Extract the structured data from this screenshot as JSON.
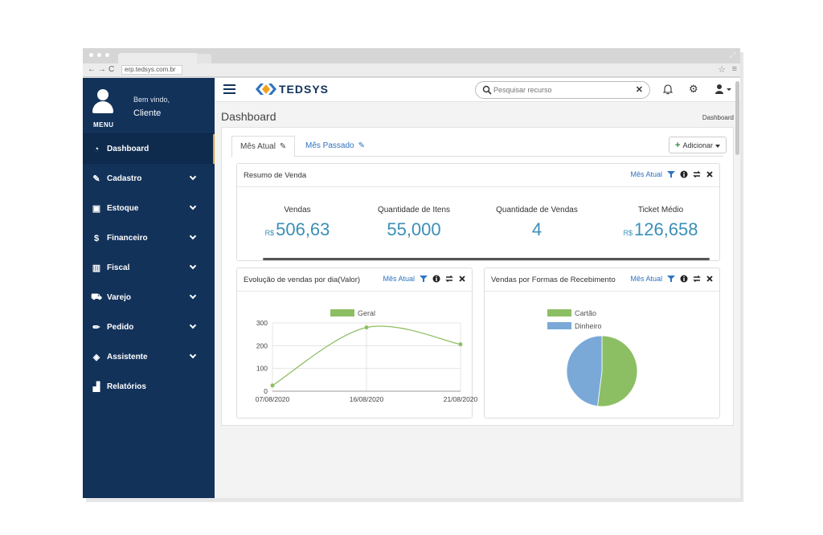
{
  "browser": {
    "url": "erp.tedsys.com.br"
  },
  "sidebar": {
    "welcome": "Bem vindo,",
    "client": "Cliente",
    "menu_label": "MENU",
    "items": [
      {
        "label": "Dashboard",
        "icon": "dashboard-icon",
        "active": true
      },
      {
        "label": "Cadastro",
        "icon": "edit-icon"
      },
      {
        "label": "Estoque",
        "icon": "box-icon"
      },
      {
        "label": "Financeiro",
        "icon": "dollar-icon"
      },
      {
        "label": "Fiscal",
        "icon": "barcode-icon"
      },
      {
        "label": "Varejo",
        "icon": "cart-icon"
      },
      {
        "label": "Pedido",
        "icon": "pencil-icon"
      },
      {
        "label": "Assistente",
        "icon": "ticket-icon"
      },
      {
        "label": "Relatórios",
        "icon": "bar-chart-icon"
      }
    ]
  },
  "topbar": {
    "logo": "TEDSYS",
    "search_placeholder": "Pesquisar recurso"
  },
  "page": {
    "title": "Dashboard",
    "breadcrumb": "Dashboard",
    "tabs": [
      {
        "label": "Mês Atual",
        "active": true
      },
      {
        "label": "Mês Passado",
        "active": false
      }
    ],
    "add_label": "Adicionar"
  },
  "summary": {
    "title": "Resumo de Venda",
    "period": "Mês Atual",
    "kpis": [
      {
        "label": "Vendas",
        "currency": "R$",
        "value": "506,63"
      },
      {
        "label": "Quantidade de Itens",
        "currency": "",
        "value": "55,000"
      },
      {
        "label": "Quantidade de Vendas",
        "currency": "",
        "value": "4"
      },
      {
        "label": "Ticket Médio",
        "currency": "R$",
        "value": "126,658"
      }
    ]
  },
  "line_box": {
    "title": "Evolução de vendas por dia(Valor)",
    "period": "Mês Atual"
  },
  "pie_box": {
    "title": "Vendas por Formas de Recebimento",
    "period": "Mês Atual"
  },
  "colors": {
    "sidebar": "#12325a",
    "accent": "#3b8fb7",
    "link": "#2d72c2",
    "green": "#8cbf64",
    "blue": "#7aa9d8"
  },
  "chart_data": [
    {
      "type": "line",
      "title": "",
      "x": [
        "07/08/2020",
        "16/08/2020",
        "21/08/2020"
      ],
      "series": [
        {
          "name": "Geral",
          "values": [
            25,
            280,
            206
          ]
        }
      ],
      "ylim": [
        0,
        300
      ],
      "yticks": [
        0,
        100,
        200,
        300
      ],
      "grid": true,
      "legend": "top"
    },
    {
      "type": "pie",
      "title": "",
      "labels": [
        "Cartão",
        "Dinheiro"
      ],
      "values": [
        52,
        48
      ],
      "legend": "top"
    }
  ]
}
